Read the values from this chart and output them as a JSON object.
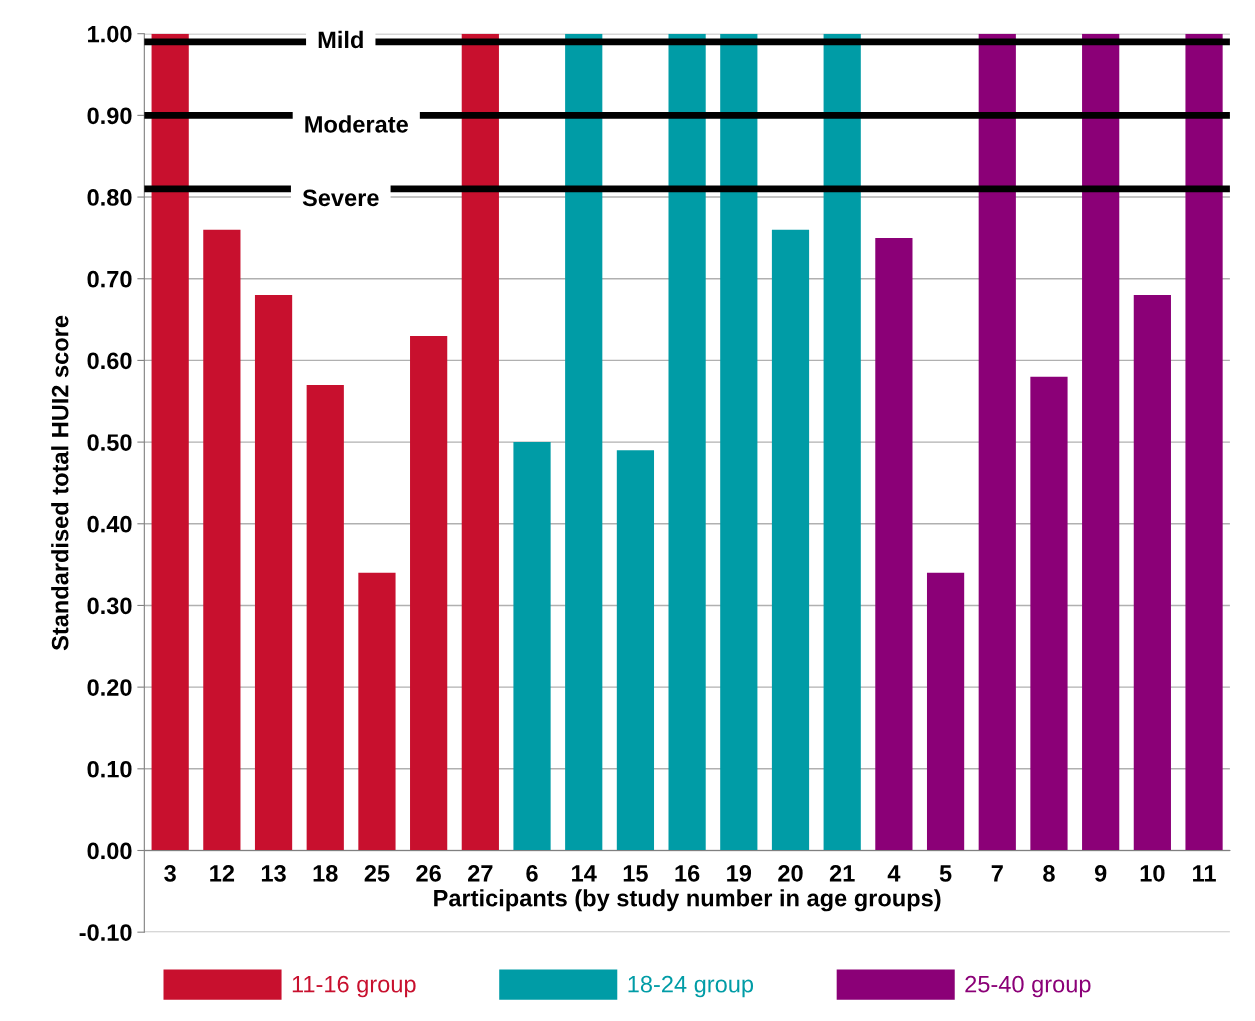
{
  "chart_data": {
    "type": "bar",
    "xlabel": "Participants (by study number in age groups)",
    "ylabel": "Standardised total HUI2 score",
    "categories": [
      "3",
      "12",
      "13",
      "18",
      "25",
      "26",
      "27",
      "6",
      "14",
      "15",
      "16",
      "19",
      "20",
      "21",
      "4",
      "5",
      "7",
      "8",
      "9",
      "10",
      "11"
    ],
    "series": [
      {
        "name": "11-16 group",
        "color": "#c8102e",
        "values": [
          1.0,
          0.76,
          0.68,
          0.57,
          0.34,
          0.63,
          1.0,
          null,
          null,
          null,
          null,
          null,
          null,
          null,
          null,
          null,
          null,
          null,
          null,
          null,
          null
        ]
      },
      {
        "name": "18-24 group",
        "color": "#009ca6",
        "values": [
          null,
          null,
          null,
          null,
          null,
          null,
          null,
          0.5,
          1.0,
          0.49,
          1.0,
          1.0,
          0.76,
          1.0,
          null,
          null,
          null,
          null,
          null,
          null,
          null
        ]
      },
      {
        "name": "25-40 group",
        "color": "#8b0077",
        "values": [
          null,
          null,
          null,
          null,
          null,
          null,
          null,
          null,
          null,
          null,
          null,
          null,
          null,
          null,
          0.75,
          0.34,
          1.0,
          0.58,
          1.0,
          0.68,
          1.0
        ]
      }
    ],
    "ylim": [
      -0.1,
      1.0
    ],
    "yticks": [
      {
        "value": -0.1,
        "label": "-0.10"
      },
      {
        "value": 0,
        "label": "0.00"
      },
      {
        "value": 0.1,
        "label": "0.10"
      },
      {
        "value": 0.2,
        "label": "0.20"
      },
      {
        "value": 0.3,
        "label": "0.30"
      },
      {
        "value": 0.4,
        "label": "0.40"
      },
      {
        "value": 0.5,
        "label": "0.50"
      },
      {
        "value": 0.6,
        "label": "0.60"
      },
      {
        "value": 0.7,
        "label": "0.70"
      },
      {
        "value": 0.8,
        "label": "0.80"
      },
      {
        "value": 0.9,
        "label": "0.90"
      },
      {
        "value": 1.0,
        "label": "1.00"
      }
    ],
    "ref_lines": [
      {
        "axis": "y",
        "value": 0.99,
        "label": "Mild",
        "color": "#000000"
      },
      {
        "axis": "y",
        "value": 0.9,
        "label": "Moderate",
        "color": "#000000"
      },
      {
        "axis": "y",
        "value": 0.81,
        "label": "Severe",
        "color": "#000000"
      }
    ],
    "grid": "y",
    "legend": "bottom"
  }
}
